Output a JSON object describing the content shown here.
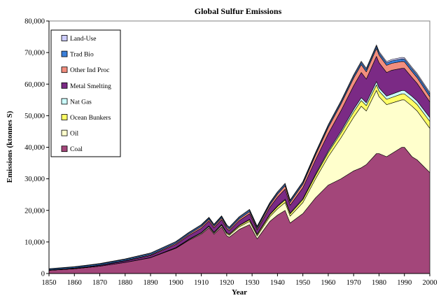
{
  "chart_data": {
    "type": "area",
    "stacked": true,
    "title": "Global Sulfur Emissions",
    "xlabel": "Year",
    "ylabel": "Emissions (ktonnes S)",
    "xlim": [
      1850,
      2000
    ],
    "ylim": [
      0,
      80000
    ],
    "x_ticks": [
      1850,
      1860,
      1870,
      1880,
      1890,
      1900,
      1910,
      1920,
      1930,
      1940,
      1950,
      1960,
      1970,
      1980,
      1990,
      2000
    ],
    "x_tick_labels": [
      "1850",
      "1860",
      "1870",
      "1880",
      "1890",
      "1900",
      "1910",
      "1920",
      "1930",
      "1940",
      "1950",
      "1960",
      "1970",
      "1980",
      "1990",
      "2000"
    ],
    "y_ticks": [
      0,
      10000,
      20000,
      30000,
      40000,
      50000,
      60000,
      70000,
      80000
    ],
    "y_tick_labels": [
      "0",
      "10,000",
      "20,000",
      "30,000",
      "40,000",
      "50,000",
      "60,000",
      "70,000",
      "80,000"
    ],
    "legend_position": "top-left",
    "x": [
      1850,
      1860,
      1870,
      1880,
      1890,
      1900,
      1905,
      1910,
      1913,
      1915,
      1918,
      1920,
      1921,
      1925,
      1929,
      1932,
      1937,
      1940,
      1943,
      1945,
      1950,
      1955,
      1960,
      1965,
      1970,
      1973,
      1975,
      1979,
      1980,
      1983,
      1985,
      1989,
      1990,
      1993,
      1995,
      2000
    ],
    "series": [
      {
        "name": "Coal",
        "color": "#a3467a",
        "values": [
          1000,
          1500,
          2300,
          3500,
          5000,
          8000,
          10500,
          12500,
          14500,
          12500,
          14800,
          12000,
          11500,
          14000,
          15500,
          11000,
          16500,
          18500,
          20000,
          16000,
          19000,
          24000,
          28000,
          30000,
          32500,
          33500,
          34500,
          38000,
          38000,
          37000,
          38000,
          40000,
          40000,
          37000,
          36000,
          32000
        ]
      },
      {
        "name": "Oil",
        "color": "#ffffcc",
        "values": [
          0,
          0,
          20,
          40,
          80,
          150,
          200,
          300,
          400,
          350,
          500,
          600,
          600,
          800,
          1000,
          900,
          1500,
          2000,
          2500,
          2200,
          3500,
          6000,
          9000,
          13000,
          17000,
          19500,
          17000,
          20000,
          18000,
          16500,
          16000,
          15000,
          15000,
          16000,
          15500,
          14000
        ]
      },
      {
        "name": "Ocean Bunkers",
        "color": "#ffff66",
        "values": [
          0,
          0,
          0,
          0,
          20,
          50,
          80,
          120,
          150,
          150,
          200,
          300,
          300,
          400,
          500,
          450,
          600,
          700,
          800,
          700,
          900,
          1100,
          1300,
          1500,
          1700,
          1800,
          1700,
          1800,
          1800,
          1700,
          1750,
          1900,
          1900,
          2000,
          2050,
          2200
        ]
      },
      {
        "name": "Nat Gas",
        "color": "#ccffff",
        "values": [
          0,
          0,
          0,
          0,
          0,
          20,
          30,
          50,
          60,
          60,
          70,
          80,
          80,
          100,
          150,
          140,
          180,
          200,
          250,
          250,
          300,
          400,
          500,
          600,
          800,
          900,
          900,
          1000,
          1000,
          1000,
          1050,
          1100,
          1100,
          1100,
          1100,
          1200
        ]
      },
      {
        "name": "Metal Smelting",
        "color": "#7b2a85",
        "values": [
          100,
          150,
          250,
          400,
          600,
          1000,
          1200,
          1400,
          1500,
          1400,
          1500,
          1300,
          1100,
          1500,
          1800,
          1300,
          2200,
          2800,
          3200,
          2500,
          3500,
          4500,
          5500,
          6500,
          7500,
          8000,
          7500,
          8000,
          8000,
          7500,
          7600,
          7000,
          7000,
          6000,
          5600,
          5000
        ]
      },
      {
        "name": "Other Ind Proc",
        "color": "#f28e7e",
        "values": [
          50,
          80,
          120,
          180,
          250,
          350,
          400,
          500,
          550,
          500,
          550,
          500,
          450,
          550,
          650,
          500,
          750,
          900,
          1050,
          850,
          1100,
          1500,
          1900,
          2100,
          2400,
          2500,
          2300,
          2500,
          2400,
          2250,
          2200,
          2200,
          2100,
          1900,
          1800,
          1600
        ]
      },
      {
        "name": "Trad Bio",
        "color": "#3b7fd9",
        "values": [
          300,
          320,
          340,
          360,
          380,
          400,
          410,
          420,
          430,
          430,
          440,
          450,
          450,
          460,
          480,
          480,
          500,
          510,
          520,
          520,
          540,
          560,
          590,
          620,
          660,
          680,
          700,
          720,
          730,
          750,
          760,
          790,
          800,
          820,
          830,
          860
        ]
      },
      {
        "name": "Land-Use",
        "color": "#ccccff",
        "values": [
          100,
          120,
          140,
          160,
          180,
          200,
          210,
          220,
          225,
          225,
          230,
          240,
          240,
          250,
          260,
          260,
          280,
          290,
          300,
          300,
          320,
          340,
          360,
          380,
          400,
          410,
          420,
          430,
          440,
          450,
          460,
          480,
          480,
          490,
          500,
          520
        ]
      }
    ],
    "legend_order": [
      "Land-Use",
      "Trad Bio",
      "Other Ind Proc",
      "Metal Smelting",
      "Nat Gas",
      "Ocean Bunkers",
      "Oil",
      "Coal"
    ]
  }
}
